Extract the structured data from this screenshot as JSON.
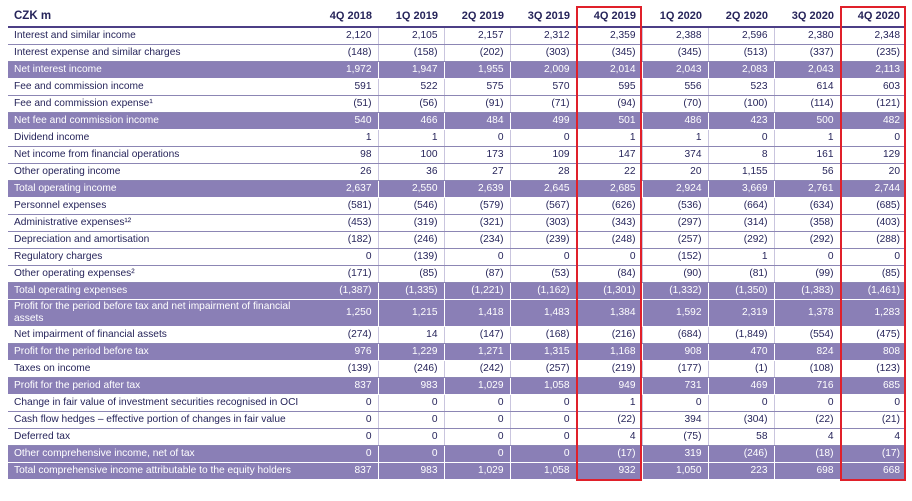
{
  "header": {
    "unit": "CZK m",
    "periods": [
      "4Q 2018",
      "1Q 2019",
      "2Q 2019",
      "3Q 2019",
      "4Q 2019",
      "1Q 2020",
      "2Q 2020",
      "3Q 2020",
      "4Q 2020"
    ]
  },
  "rows": [
    {
      "label": "Interest and similar income",
      "values": [
        "2,120",
        "2,105",
        "2,157",
        "2,312",
        "2,359",
        "2,388",
        "2,596",
        "2,380",
        "2,348"
      ],
      "style": "light"
    },
    {
      "label": "Interest expense and similar charges",
      "values": [
        "(148)",
        "(158)",
        "(202)",
        "(303)",
        "(345)",
        "(345)",
        "(513)",
        "(337)",
        "(235)"
      ],
      "style": "light"
    },
    {
      "label": "Net interest income",
      "values": [
        "1,972",
        "1,947",
        "1,955",
        "2,009",
        "2,014",
        "2,043",
        "2,083",
        "2,043",
        "2,113"
      ],
      "style": "dark"
    },
    {
      "label": "Fee and commission income",
      "values": [
        "591",
        "522",
        "575",
        "570",
        "595",
        "556",
        "523",
        "614",
        "603"
      ],
      "style": "light"
    },
    {
      "label": "Fee and commission expense¹",
      "values": [
        "(51)",
        "(56)",
        "(91)",
        "(71)",
        "(94)",
        "(70)",
        "(100)",
        "(114)",
        "(121)"
      ],
      "style": "light"
    },
    {
      "label": "Net fee and commission income",
      "values": [
        "540",
        "466",
        "484",
        "499",
        "501",
        "486",
        "423",
        "500",
        "482"
      ],
      "style": "dark"
    },
    {
      "label": "Dividend income",
      "values": [
        "1",
        "1",
        "0",
        "0",
        "1",
        "1",
        "0",
        "1",
        "0"
      ],
      "style": "light"
    },
    {
      "label": "Net income from financial operations",
      "values": [
        "98",
        "100",
        "173",
        "109",
        "147",
        "374",
        "8",
        "161",
        "129"
      ],
      "style": "light"
    },
    {
      "label": "Other operating income",
      "values": [
        "26",
        "36",
        "27",
        "28",
        "22",
        "20",
        "1,155",
        "56",
        "20"
      ],
      "style": "light"
    },
    {
      "label": "Total operating income",
      "values": [
        "2,637",
        "2,550",
        "2,639",
        "2,645",
        "2,685",
        "2,924",
        "3,669",
        "2,761",
        "2,744"
      ],
      "style": "dark"
    },
    {
      "label": "Personnel expenses",
      "values": [
        "(581)",
        "(546)",
        "(579)",
        "(567)",
        "(626)",
        "(536)",
        "(664)",
        "(634)",
        "(685)"
      ],
      "style": "light"
    },
    {
      "label": "Administrative expenses¹²",
      "values": [
        "(453)",
        "(319)",
        "(321)",
        "(303)",
        "(343)",
        "(297)",
        "(314)",
        "(358)",
        "(403)"
      ],
      "style": "light"
    },
    {
      "label": "Depreciation and amortisation",
      "values": [
        "(182)",
        "(246)",
        "(234)",
        "(239)",
        "(248)",
        "(257)",
        "(292)",
        "(292)",
        "(288)"
      ],
      "style": "light"
    },
    {
      "label": "Regulatory charges",
      "values": [
        "0",
        "(139)",
        "0",
        "0",
        "0",
        "(152)",
        "1",
        "0",
        "0"
      ],
      "style": "light"
    },
    {
      "label": "Other operating expenses²",
      "values": [
        "(171)",
        "(85)",
        "(87)",
        "(53)",
        "(84)",
        "(90)",
        "(81)",
        "(99)",
        "(85)"
      ],
      "style": "light"
    },
    {
      "label": "Total operating expenses",
      "values": [
        "(1,387)",
        "(1,335)",
        "(1,221)",
        "(1,162)",
        "(1,301)",
        "(1,332)",
        "(1,350)",
        "(1,383)",
        "(1,461)"
      ],
      "style": "dark"
    },
    {
      "label": "Profit for the period before tax and net impairment of financial assets",
      "values": [
        "1,250",
        "1,215",
        "1,418",
        "1,483",
        "1,384",
        "1,592",
        "2,319",
        "1,378",
        "1,283"
      ],
      "style": "dark",
      "tall": true
    },
    {
      "label": "Net impairment of financial assets",
      "values": [
        "(274)",
        "14",
        "(147)",
        "(168)",
        "(216)",
        "(684)",
        "(1,849)",
        "(554)",
        "(475)"
      ],
      "style": "light"
    },
    {
      "label": "Profit for the period before tax",
      "values": [
        "976",
        "1,229",
        "1,271",
        "1,315",
        "1,168",
        "908",
        "470",
        "824",
        "808"
      ],
      "style": "dark"
    },
    {
      "label": "Taxes on income",
      "values": [
        "(139)",
        "(246)",
        "(242)",
        "(257)",
        "(219)",
        "(177)",
        "(1)",
        "(108)",
        "(123)"
      ],
      "style": "light"
    },
    {
      "label": "Profit for the period after tax",
      "values": [
        "837",
        "983",
        "1,029",
        "1,058",
        "949",
        "731",
        "469",
        "716",
        "685"
      ],
      "style": "dark"
    },
    {
      "label": "Change in fair value of investment securities recognised in OCI",
      "values": [
        "0",
        "0",
        "0",
        "0",
        "1",
        "0",
        "0",
        "0",
        "0"
      ],
      "style": "light"
    },
    {
      "label": "Cash flow hedges – effective portion of changes in fair value",
      "values": [
        "0",
        "0",
        "0",
        "0",
        "(22)",
        "394",
        "(304)",
        "(22)",
        "(21)"
      ],
      "style": "light"
    },
    {
      "label": "Deferred tax",
      "values": [
        "0",
        "0",
        "0",
        "0",
        "4",
        "(75)",
        "58",
        "4",
        "4"
      ],
      "style": "light"
    },
    {
      "label": "Other comprehensive income, net of tax",
      "values": [
        "0",
        "0",
        "0",
        "0",
        "(17)",
        "319",
        "(246)",
        "(18)",
        "(17)"
      ],
      "style": "dark"
    },
    {
      "label": "Total comprehensive income attributable to the equity holders",
      "values": [
        "837",
        "983",
        "1,029",
        "1,058",
        "932",
        "1,050",
        "223",
        "698",
        "668"
      ],
      "style": "dark"
    }
  ],
  "highlight_color": "#e0202a"
}
